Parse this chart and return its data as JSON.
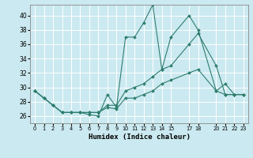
{
  "xlabel": "Humidex (Indice chaleur)",
  "bg_color": "#cbe9f0",
  "grid_color": "#ffffff",
  "line_color": "#2e7d6e",
  "ylim": [
    25.0,
    41.5
  ],
  "xlim": [
    -0.5,
    23.5
  ],
  "yticks": [
    26,
    28,
    30,
    32,
    34,
    36,
    38,
    40
  ],
  "xtick_positions": [
    0,
    1,
    2,
    3,
    4,
    5,
    6,
    7,
    8,
    9,
    10,
    11,
    12,
    13,
    14,
    15,
    17,
    18,
    20,
    21,
    22,
    23
  ],
  "xtick_labels": [
    "0",
    "1",
    "2",
    "3",
    "4",
    "5",
    "6",
    "7",
    "8",
    "9",
    "10",
    "11",
    "12",
    "13",
    "14",
    "15",
    "17",
    "18",
    "20",
    "21",
    "22",
    "23"
  ],
  "series": [
    {
      "x": [
        0,
        1,
        2,
        3,
        4,
        5,
        6,
        7,
        8,
        9,
        10,
        11,
        12,
        13,
        14,
        15,
        17,
        18,
        20,
        21,
        22,
        23
      ],
      "y": [
        29.5,
        28.5,
        27.5,
        26.5,
        26.5,
        26.5,
        26.2,
        26.0,
        29.0,
        27.2,
        37.0,
        37.0,
        39.0,
        41.5,
        32.5,
        37.0,
        40.0,
        38.0,
        29.5,
        30.5,
        29.0,
        29.0
      ]
    },
    {
      "x": [
        0,
        1,
        2,
        3,
        4,
        5,
        6,
        7,
        8,
        9,
        10,
        11,
        12,
        13,
        14,
        15,
        17,
        18,
        20,
        21,
        22,
        23
      ],
      "y": [
        29.5,
        28.5,
        27.5,
        26.5,
        26.5,
        26.5,
        26.5,
        26.5,
        27.5,
        27.5,
        29.5,
        30.0,
        30.5,
        31.5,
        32.5,
        33.0,
        36.0,
        37.5,
        33.0,
        29.0,
        29.0,
        29.0
      ]
    },
    {
      "x": [
        0,
        1,
        2,
        3,
        4,
        5,
        6,
        7,
        8,
        9,
        10,
        11,
        12,
        13,
        14,
        15,
        17,
        18,
        20,
        21,
        22,
        23
      ],
      "y": [
        29.5,
        28.5,
        27.5,
        26.5,
        26.5,
        26.5,
        26.5,
        26.5,
        27.2,
        27.0,
        28.5,
        28.5,
        29.0,
        29.5,
        30.5,
        31.0,
        32.0,
        32.5,
        29.5,
        29.0,
        29.0,
        29.0
      ]
    }
  ]
}
